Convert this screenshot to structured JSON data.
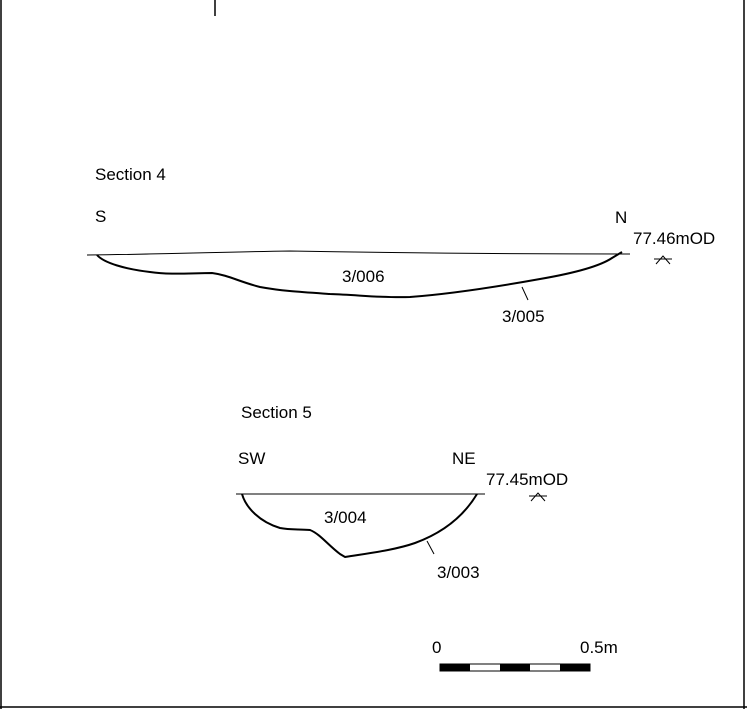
{
  "section4": {
    "title": "Section 4",
    "orientation_left": "S",
    "orientation_right": "N",
    "datum_level": "77.46mOD",
    "fill_label": "3/006",
    "cut_label": "3/005"
  },
  "section5": {
    "title": "Section 5",
    "orientation_left": "SW",
    "orientation_right": "NE",
    "datum_level": "77.45mOD",
    "fill_label": "3/004",
    "cut_label": "3/003"
  },
  "scale_bar": {
    "start_label": "0",
    "end_label": "0.5m",
    "segments": 5
  },
  "colors": {
    "ink": "#000000",
    "paper": "#ffffff"
  }
}
